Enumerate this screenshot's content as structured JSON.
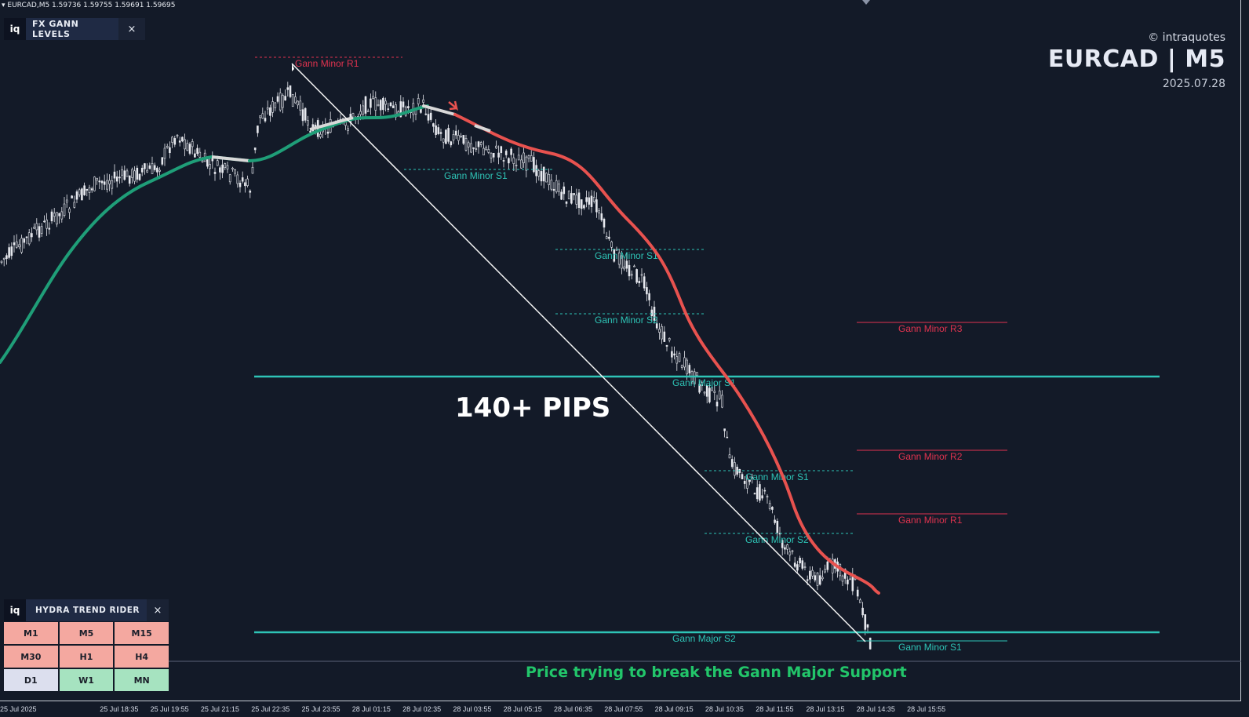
{
  "symbol_info": "EURCAD,M5  1.59736 1.59755 1.59691 1.59695",
  "gann_panel": {
    "logo": "iq",
    "title": "FX GANN LEVELS",
    "close": "×"
  },
  "hydra_panel": {
    "logo": "iq",
    "title": "HYDRA TREND RIDER",
    "close": "×"
  },
  "timeframes": [
    {
      "label": "M1",
      "state": "bearish"
    },
    {
      "label": "M5",
      "state": "bearish"
    },
    {
      "label": "M15",
      "state": "bearish"
    },
    {
      "label": "M30",
      "state": "bearish"
    },
    {
      "label": "H1",
      "state": "bearish"
    },
    {
      "label": "H4",
      "state": "bearish"
    },
    {
      "label": "D1",
      "state": "neutral"
    },
    {
      "label": "W1",
      "state": "bullish"
    },
    {
      "label": "MN",
      "state": "bullish"
    }
  ],
  "brand": {
    "copyright": "© intraquotes",
    "pair": "EURCAD | M5",
    "date": "2025.07.28"
  },
  "annotation_pips": "140+ PIPS",
  "caption": "Price trying to break the Gann Major Support",
  "gann_levels": {
    "minor_r1_top": "Gann Minor R1",
    "minor_s1_a": "Gann Minor S1",
    "minor_s1_b": "Gann Minor S1",
    "minor_s2_b": "Gann Minor S2",
    "major_s1": "Gann Major S1",
    "minor_s1_c": "Gann Minor S1",
    "minor_s2_c": "Gann Minor S2",
    "major_s2": "Gann Major S2",
    "minor_r3_right": "Gann Minor R3",
    "minor_r2_right": "Gann Minor R2",
    "minor_r1_right": "Gann Minor R1",
    "minor_s1_right": "Gann Minor S1"
  },
  "time_axis": [
    "25 Jul 2025",
    "25 Jul 18:35",
    "25 Jul 19:55",
    "25 Jul 21:15",
    "25 Jul 22:35",
    "25 Jul 23:55",
    "28 Jul 01:15",
    "28 Jul 02:35",
    "28 Jul 03:55",
    "28 Jul 05:15",
    "28 Jul 06:35",
    "28 Jul 07:55",
    "28 Jul 09:15",
    "28 Jul 10:35",
    "28 Jul 11:55",
    "28 Jul 13:15",
    "28 Jul 14:35",
    "28 Jul 15:55"
  ],
  "colors": {
    "background": "#131a28",
    "support": "#2ec4b6",
    "resistance": "#e0334f",
    "trend_up": "#1f9e78",
    "trend_down": "#e8524f",
    "trend_neutral": "#d8d8d8"
  }
}
